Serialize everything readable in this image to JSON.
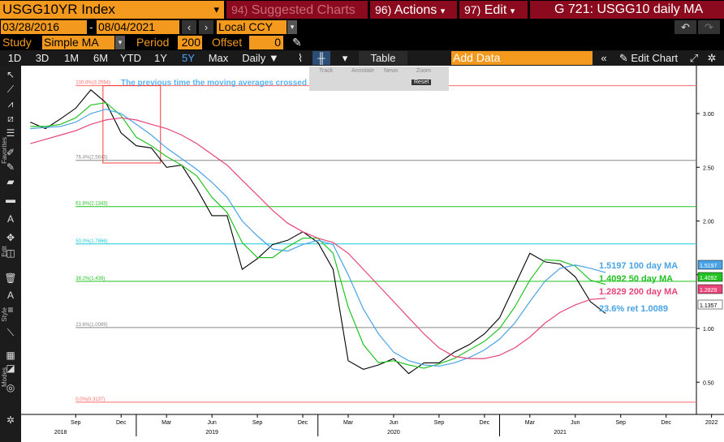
{
  "header": {
    "ticker": "USGG10YR Index",
    "menu_suggested": {
      "num": "94)",
      "label": "Suggested Charts"
    },
    "menu_actions": {
      "num": "96)",
      "label": "Actions"
    },
    "menu_edit": {
      "num": "97)",
      "label": "Edit"
    },
    "window_title": "G 721: USGG10 daily MA"
  },
  "dates": {
    "start": "03/28/2016",
    "sep": "-",
    "end": "08/04/2021",
    "currency": "Local CCY"
  },
  "study": {
    "label": "Study",
    "value": "Simple MA",
    "period_label": "Period",
    "period": "200",
    "offset_label": "Offset",
    "offset": "0"
  },
  "timeframes": [
    "1D",
    "3D",
    "1M",
    "6M",
    "YTD",
    "1Y",
    "5Y",
    "Max"
  ],
  "active_timeframe": "5Y",
  "toolbar": {
    "frequency": "Daily",
    "table": "Table",
    "add_data_placeholder": "Add Data",
    "edit_chart": "Edit Chart"
  },
  "panel_tools": [
    "Track",
    "Annotate",
    "News",
    "Zoom",
    "Reset"
  ],
  "sidebar_labels": [
    "Favorites",
    "Edit",
    "Style",
    "Modes"
  ],
  "colors": {
    "price": "#000000",
    "ma50": "#22c322",
    "ma100": "#4aa3e6",
    "ma200": "#e8457a",
    "accent": "#f39a1e",
    "menu": "#8b0a1e"
  },
  "chart_data": {
    "type": "line",
    "title": "",
    "annotation": "The previous time the moving averages crossed",
    "y_ticks": [
      0.5,
      1.0,
      1.5,
      2.0,
      2.5,
      3.0
    ],
    "y_tick_labels": [
      "0.50",
      "1.00",
      "1.50",
      "2.00",
      "2.50",
      "3.00"
    ],
    "ylim": [
      0.2,
      3.4
    ],
    "x_tick_labels": [
      "Sep",
      "Dec",
      "Mar",
      "Jun",
      "Sep",
      "Dec",
      "Mar",
      "Jun",
      "Sep",
      "Dec",
      "Mar",
      "Jun",
      "Sep",
      "Dec",
      "2022"
    ],
    "x_year_labels": [
      "2018",
      "2019",
      "2020",
      "2021"
    ],
    "fib_levels": [
      {
        "label": "100.0%(3.2594)",
        "value": 3.2594,
        "color": "#ff6b6b"
      },
      {
        "label": "76.4%(2.5643)",
        "value": 2.5643,
        "color": "#888888"
      },
      {
        "label": "61.8%(2.1343)",
        "value": 2.1343,
        "color": "#22c322"
      },
      {
        "label": "50.0%(1.7866)",
        "value": 1.7866,
        "color": "#18c9d8"
      },
      {
        "label": "38.2%(1.439)",
        "value": 1.439,
        "color": "#22c322"
      },
      {
        "label": "23.6%(1.0089)",
        "value": 1.0089,
        "color": "#888888"
      },
      {
        "label": "0.0%(0.3137)",
        "value": 0.3137,
        "color": "#ff6b6b"
      }
    ],
    "right_labels": [
      {
        "text": "1.5197 100 day MA",
        "value": 1.5197,
        "color": "#4aa3e6"
      },
      {
        "text": "1.4092 50 day MA",
        "value": 1.4092,
        "color": "#22c322"
      },
      {
        "text": "1.2829 200 day MA",
        "value": 1.2829,
        "color": "#e8457a"
      },
      {
        "text": "23.6% ret 1.0089",
        "value": 1.0089,
        "color": "#4aa3e6"
      }
    ],
    "last_values": [
      {
        "value": "1.5197",
        "color": "#4aa3e6"
      },
      {
        "value": "1.4092",
        "color": "#22c322"
      },
      {
        "value": "1.2829",
        "color": "#e8457a"
      },
      {
        "value": "1.1357",
        "color": "#000000"
      }
    ],
    "x": [
      "2018-06",
      "2018-07",
      "2018-08",
      "2018-09",
      "2018-10",
      "2018-11",
      "2018-12",
      "2019-01",
      "2019-02",
      "2019-03",
      "2019-04",
      "2019-05",
      "2019-06",
      "2019-07",
      "2019-08",
      "2019-09",
      "2019-10",
      "2019-11",
      "2019-12",
      "2020-01",
      "2020-02",
      "2020-03",
      "2020-04",
      "2020-05",
      "2020-06",
      "2020-07",
      "2020-08",
      "2020-09",
      "2020-10",
      "2020-11",
      "2020-12",
      "2021-01",
      "2021-02",
      "2021-03",
      "2021-04",
      "2021-05",
      "2021-06",
      "2021-07",
      "2021-08"
    ],
    "series": [
      {
        "name": "USGG10YR Index",
        "color": "#000000",
        "values": [
          2.92,
          2.86,
          2.95,
          3.05,
          3.22,
          3.1,
          2.82,
          2.7,
          2.68,
          2.5,
          2.52,
          2.3,
          2.05,
          2.05,
          1.55,
          1.65,
          1.78,
          1.82,
          1.9,
          1.8,
          1.55,
          0.7,
          0.62,
          0.66,
          0.72,
          0.58,
          0.68,
          0.68,
          0.78,
          0.85,
          0.95,
          1.1,
          1.4,
          1.7,
          1.62,
          1.6,
          1.48,
          1.25,
          1.14
        ]
      },
      {
        "name": "50 day MA",
        "color": "#22c322",
        "values": [
          2.88,
          2.88,
          2.9,
          2.96,
          3.08,
          3.1,
          2.98,
          2.78,
          2.7,
          2.6,
          2.52,
          2.42,
          2.22,
          2.08,
          1.8,
          1.66,
          1.66,
          1.76,
          1.84,
          1.84,
          1.7,
          1.2,
          0.85,
          0.68,
          0.7,
          0.66,
          0.63,
          0.67,
          0.72,
          0.8,
          0.88,
          1.0,
          1.2,
          1.45,
          1.64,
          1.63,
          1.58,
          1.45,
          1.41
        ]
      },
      {
        "name": "100 day MA",
        "color": "#4aa3e6",
        "values": [
          2.86,
          2.87,
          2.88,
          2.92,
          3.0,
          3.04,
          3.0,
          2.9,
          2.8,
          2.68,
          2.58,
          2.48,
          2.36,
          2.22,
          2.0,
          1.86,
          1.74,
          1.72,
          1.78,
          1.82,
          1.78,
          1.5,
          1.18,
          0.95,
          0.78,
          0.7,
          0.66,
          0.65,
          0.68,
          0.73,
          0.8,
          0.9,
          1.05,
          1.25,
          1.44,
          1.56,
          1.59,
          1.56,
          1.52
        ]
      },
      {
        "name": "200 day MA",
        "color": "#e8457a",
        "values": [
          2.72,
          2.76,
          2.8,
          2.84,
          2.9,
          2.94,
          2.96,
          2.94,
          2.9,
          2.86,
          2.8,
          2.72,
          2.62,
          2.52,
          2.38,
          2.24,
          2.1,
          1.98,
          1.9,
          1.84,
          1.8,
          1.7,
          1.55,
          1.4,
          1.25,
          1.1,
          0.95,
          0.82,
          0.74,
          0.72,
          0.72,
          0.75,
          0.82,
          0.92,
          1.05,
          1.15,
          1.22,
          1.27,
          1.28
        ]
      }
    ]
  }
}
